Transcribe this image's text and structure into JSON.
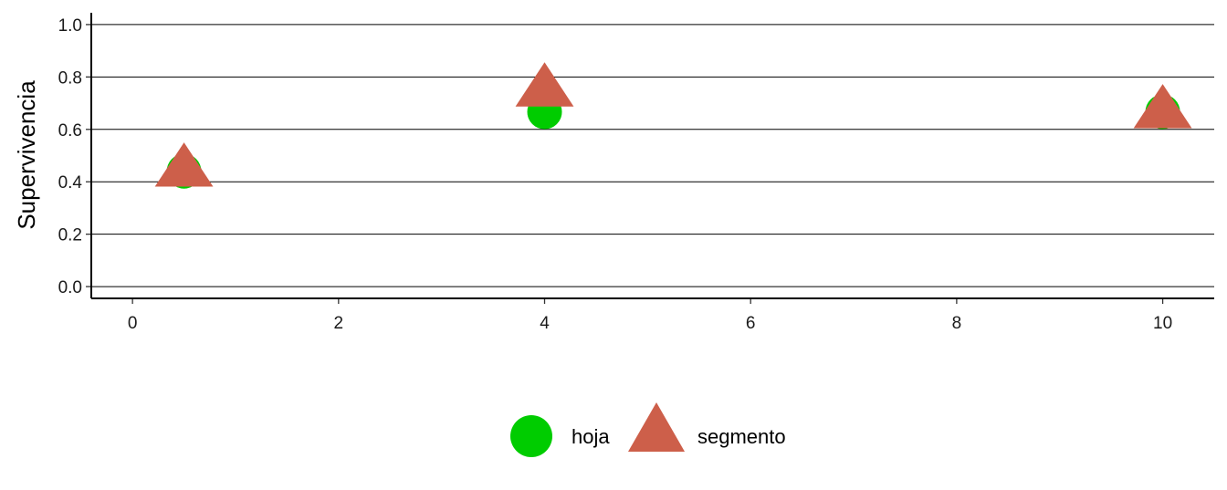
{
  "chart_data": {
    "type": "scatter",
    "title": "",
    "xlabel": "",
    "ylabel": "Supervivencia",
    "xlim": [
      -0.4,
      10.5
    ],
    "ylim": [
      -0.045,
      1.045
    ],
    "x_ticks": [
      0,
      2,
      4,
      6,
      8,
      10
    ],
    "x_tick_labels": [
      "0",
      "2",
      "4",
      "6",
      "8",
      "10"
    ],
    "y_ticks": [
      0.0,
      0.2,
      0.4,
      0.6,
      0.8,
      1.0
    ],
    "y_tick_labels": [
      "0.0",
      "0.2",
      "0.4",
      "0.6",
      "0.8",
      "1.0"
    ],
    "grid": "horizontal major lines",
    "legend_position": "bottom",
    "series": [
      {
        "name": "hoja",
        "marker": "circle",
        "color": "#00cc00",
        "x": [
          0.5,
          4,
          10
        ],
        "y": [
          0.44,
          0.667,
          0.667
        ]
      },
      {
        "name": "segmento",
        "marker": "triangle",
        "color": "#cd5f4a",
        "x": [
          0.5,
          4,
          10
        ],
        "y": [
          0.444,
          0.75,
          0.667
        ]
      }
    ]
  }
}
